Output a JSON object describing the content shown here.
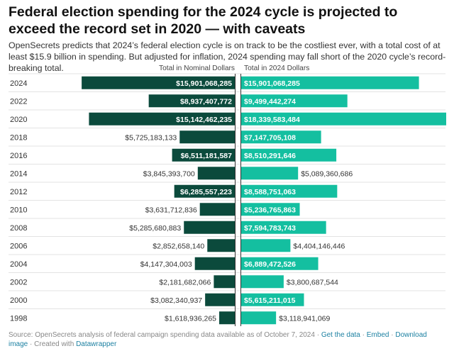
{
  "header": {
    "title": "Federal election spending for the 2024 cycle is projected to exceed the record set in 2020 — with caveats",
    "subtitle": "OpenSecrets predicts that 2024’s federal election cycle is on track to be the costliest ever, with a total cost of at least $15.9 billion in spending. But adjusted for inflation, 2024 spending may fall short of the 2020 cycle’s record-breaking total."
  },
  "footer": {
    "source": "Source: OpenSecrets analysis of federal campaign spending data available as of October 7, 2024 · ",
    "get_data": "Get the data",
    "sep1": " · ",
    "embed": "Embed",
    "sep2": " · ",
    "download": "Download image",
    "sep3": " · Created with ",
    "datawrapper": "Datawrapper"
  },
  "colors": {
    "nominal": "#0b4a3c",
    "adjusted": "#14bfa0",
    "row_line": "#e3e3e3",
    "axis_line": "#333333"
  },
  "chart_data": {
    "type": "bar",
    "categories": [
      "2024",
      "2022",
      "2020",
      "2018",
      "2016",
      "2014",
      "2012",
      "2010",
      "2008",
      "2006",
      "2004",
      "2002",
      "2000",
      "1998"
    ],
    "series": [
      {
        "name": "Total in Nominal Dollars",
        "values": [
          15901068285,
          8937407772,
          15142462235,
          5725183133,
          6511181587,
          3845393700,
          6285557223,
          3631712836,
          5285680883,
          2852658140,
          4147304003,
          2181682066,
          3082340937,
          1618936265
        ],
        "labels": [
          "$15,901,068,285",
          "$8,937,407,772",
          "$15,142,462,235",
          "$5,725,183,133",
          "$6,511,181,587",
          "$3,845,393,700",
          "$6,285,557,223",
          "$3,631,712,836",
          "$5,285,680,883",
          "$2,852,658,140",
          "$4,147,304,003",
          "$2,181,682,066",
          "$3,082,340,937",
          "$1,618,936,265"
        ]
      },
      {
        "name": "Total in 2024 Dollars",
        "values": [
          15901068285,
          9499442274,
          18339583484,
          7147705108,
          8510291646,
          5089360686,
          8588751063,
          5236765863,
          7594783743,
          4404146446,
          6889472526,
          3800687544,
          5615211015,
          3118941069
        ],
        "labels": [
          "$15,901,068,285",
          "$9,499,442,274",
          "$18,339,583,484",
          "$7,147,705,108",
          "$8,510,291,646",
          "$5,089,360,686",
          "$8,588,751,063",
          "$5,236,765,863",
          "$7,594,783,743",
          "$4,404,146,446",
          "$6,889,472,526",
          "$3,800,687,544",
          "$5,615,211,015",
          "$3,118,941,069"
        ]
      }
    ]
  }
}
